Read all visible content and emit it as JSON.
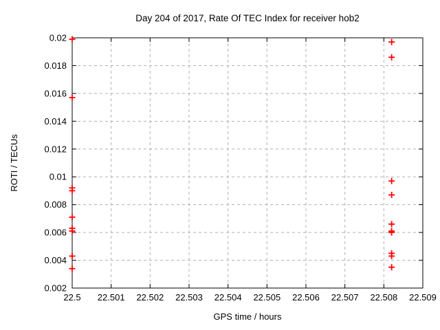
{
  "page": {
    "background": "#ffffff"
  },
  "chart_data": {
    "type": "scatter",
    "title": "Day 204 of 2017, Rate Of TEC Index for receiver hob2",
    "xlabel": "GPS time / hours",
    "ylabel": "ROTI / TECUs",
    "xlim": [
      22.5,
      22.509
    ],
    "ylim": [
      0.002,
      0.02
    ],
    "xticks": {
      "values": [
        22.5,
        22.501,
        22.502,
        22.503,
        22.504,
        22.505,
        22.506,
        22.507,
        22.508,
        22.509
      ],
      "labels": [
        "22.5",
        "22.501",
        "22.502",
        "22.503",
        "22.504",
        "22.505",
        "22.506",
        "22.507",
        "22.508",
        "22.509"
      ]
    },
    "yticks": {
      "values": [
        0.002,
        0.004,
        0.006,
        0.008,
        0.01,
        0.012,
        0.014,
        0.016,
        0.018,
        0.02
      ],
      "labels": [
        "0.002",
        "0.004",
        "0.006",
        "0.008",
        "0.01",
        "0.012",
        "0.014",
        "0.016",
        "0.018",
        "0.02"
      ]
    },
    "grid": {
      "show": true,
      "color": "#b0b0b0",
      "dash": "4,4"
    },
    "border_color": "#000000",
    "tick_length": 6,
    "legend": "none",
    "series": [
      {
        "name": "roti",
        "marker": "plus",
        "color": "#ff0000",
        "marker_size": 4.5,
        "marker_stroke_width": 1.8,
        "points": [
          [
            22.5,
            0.0199
          ],
          [
            22.5,
            0.0157
          ],
          [
            22.5,
            0.0092
          ],
          [
            22.5,
            0.009
          ],
          [
            22.5,
            0.0071
          ],
          [
            22.5,
            0.0063
          ],
          [
            22.5,
            0.0061
          ],
          [
            22.5,
            0.0043
          ],
          [
            22.5,
            0.0034
          ],
          [
            22.5082,
            0.0197
          ],
          [
            22.5082,
            0.0186
          ],
          [
            22.5082,
            0.0097
          ],
          [
            22.5082,
            0.0087
          ],
          [
            22.5082,
            0.0066
          ],
          [
            22.5082,
            0.0061
          ],
          [
            22.5082,
            0.006
          ],
          [
            22.5082,
            0.0045
          ],
          [
            22.5082,
            0.0043
          ],
          [
            22.5082,
            0.0035
          ]
        ]
      }
    ]
  }
}
